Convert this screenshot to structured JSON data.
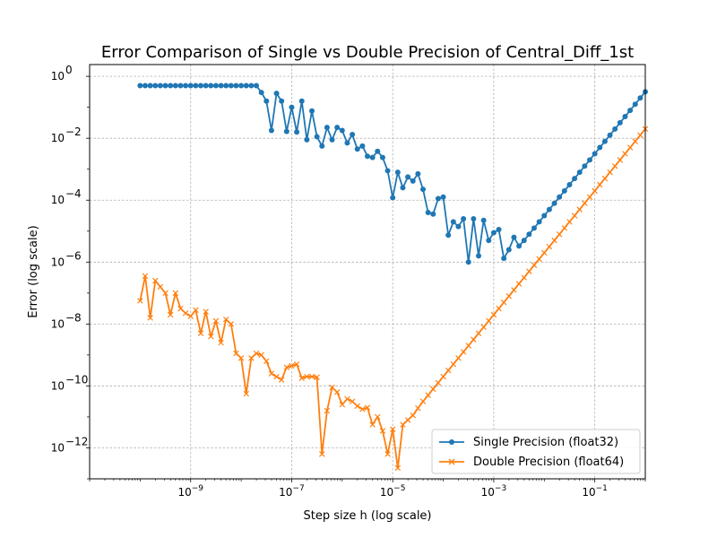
{
  "chart_data": {
    "type": "line",
    "title": "Error Comparison of Single vs Double Precision of Central_Diff_1st",
    "xlabel": "Step size h (log scale)",
    "ylabel": "Error (log scale)",
    "xscale": "log",
    "yscale": "log",
    "xlim": [
      1e-11,
      1.0
    ],
    "ylim": [
      1e-13,
      2.4
    ],
    "x_ticks": [
      {
        "exp": "-9",
        "value": 1e-09
      },
      {
        "exp": "-7",
        "value": 1e-07
      },
      {
        "exp": "-5",
        "value": 1e-05
      },
      {
        "exp": "-3",
        "value": 0.001
      },
      {
        "exp": "-1",
        "value": 0.1
      }
    ],
    "y_ticks": [
      {
        "label": "10",
        "exp": "-12",
        "value": 1e-12
      },
      {
        "label": "10",
        "exp": "-10",
        "value": 1e-10
      },
      {
        "label": "10",
        "exp": "-8",
        "value": 1e-08
      },
      {
        "label": "10",
        "exp": "-6",
        "value": 1e-06
      },
      {
        "label": "10",
        "exp": "-4",
        "value": 0.0001
      },
      {
        "label": "10",
        "exp": "-2",
        "value": 0.01
      },
      {
        "label": "10",
        "exp": "0",
        "value": 1
      }
    ],
    "grid": true,
    "legend_position": "lower-right",
    "x_log10_range": [
      -10,
      0
    ],
    "points_per_series": 101,
    "series": [
      {
        "name": "Single Precision (float32)",
        "color": "#1f77b4",
        "marker": "circle",
        "log10_values": [
          -0.3,
          -0.3,
          -0.3,
          -0.3,
          -0.3,
          -0.3,
          -0.3,
          -0.3,
          -0.3,
          -0.3,
          -0.3,
          -0.3,
          -0.3,
          -0.3,
          -0.3,
          -0.3,
          -0.3,
          -0.3,
          -0.3,
          -0.3,
          -0.3,
          -0.3,
          -0.3,
          -0.3,
          -0.52,
          -0.8,
          -1.75,
          -0.55,
          -0.8,
          -1.78,
          -1.0,
          -1.8,
          -0.8,
          -2.05,
          -1.12,
          -1.95,
          -2.25,
          -1.65,
          -2.05,
          -1.65,
          -1.75,
          -2.15,
          -1.88,
          -2.35,
          -2.25,
          -2.58,
          -2.62,
          -2.42,
          -2.62,
          -3.05,
          -3.92,
          -3.1,
          -3.6,
          -3.25,
          -3.38,
          -3.15,
          -3.65,
          -4.4,
          -4.45,
          -3.95,
          -3.9,
          -5.13,
          -4.7,
          -4.85,
          -4.6,
          -6.0,
          -4.6,
          -5.8,
          -4.65,
          -5.3,
          -5.05,
          -4.95,
          -5.88,
          -5.6,
          -5.2,
          -5.48,
          -5.3,
          -5.1,
          -4.9,
          -4.7,
          -4.5,
          -4.3,
          -4.1,
          -3.9,
          -3.7,
          -3.5,
          -3.3,
          -3.1,
          -2.9,
          -2.7,
          -2.5,
          -2.3,
          -2.1,
          -1.9,
          -1.7,
          -1.5,
          -1.3,
          -1.1,
          -0.9,
          -0.7,
          -0.5
        ]
      },
      {
        "name": "Double Precision (float64)",
        "color": "#ff7f0e",
        "marker": "x",
        "log10_values": [
          -7.25,
          -6.45,
          -7.8,
          -6.6,
          -6.8,
          -7.0,
          -7.7,
          -7.0,
          -7.5,
          -7.65,
          -7.75,
          -7.55,
          -8.3,
          -7.6,
          -8.4,
          -7.9,
          -8.6,
          -7.85,
          -8.0,
          -8.95,
          -9.1,
          -10.25,
          -9.1,
          -8.95,
          -9.0,
          -9.2,
          -9.6,
          -9.7,
          -9.8,
          -9.4,
          -9.35,
          -9.3,
          -9.75,
          -9.7,
          -9.7,
          -9.72,
          -12.2,
          -10.8,
          -10.05,
          -10.2,
          -10.6,
          -10.42,
          -10.5,
          -10.65,
          -10.75,
          -10.7,
          -11.25,
          -11.0,
          -11.45,
          -12.2,
          -11.4,
          -12.65,
          -11.25,
          -11.1,
          -10.95,
          -10.72,
          -10.5,
          -10.3,
          -10.1,
          -9.9,
          -9.7,
          -9.5,
          -9.3,
          -9.1,
          -8.9,
          -8.7,
          -8.5,
          -8.3,
          -8.1,
          -7.9,
          -7.7,
          -7.5,
          -7.3,
          -7.1,
          -6.9,
          -6.7,
          -6.5,
          -6.3,
          -6.1,
          -5.9,
          -5.7,
          -5.5,
          -5.3,
          -5.1,
          -4.9,
          -4.7,
          -4.5,
          -4.3,
          -4.1,
          -3.9,
          -3.7,
          -3.5,
          -3.3,
          -3.1,
          -2.9,
          -2.7,
          -2.5,
          -2.3,
          -2.1,
          -1.9,
          -1.7
        ]
      }
    ]
  }
}
